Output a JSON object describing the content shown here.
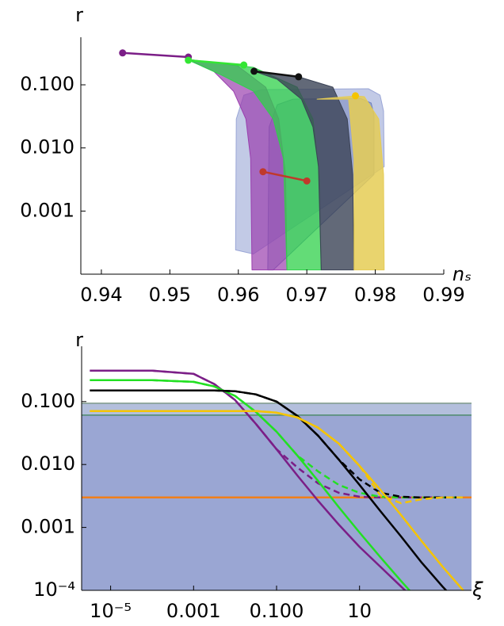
{
  "chart_data": [
    {
      "type": "line",
      "ylabel": "r",
      "xlabel": "nₛ",
      "log_y": true,
      "markers": true,
      "xlim": [
        0.937,
        0.99
      ],
      "xticks": [
        0.94,
        0.95,
        0.96,
        0.97,
        0.98,
        0.99
      ],
      "ylim": [
        0.0001,
        0.45
      ],
      "yticks": [
        0.001,
        {
          "value": 0.01,
          "label": "0.010"
        },
        {
          "value": 0.1,
          "label": "0.100"
        }
      ],
      "bands": [
        {
          "color": "#9aa6d6",
          "opacity": 0.6,
          "x": [
            0.9596,
            0.9597,
            0.9608,
            0.9634,
            0.979,
            0.9807,
            0.9812,
            0.9813,
            0.9622
          ],
          "y": [
            0.000242,
            0.0288,
            0.0686,
            0.084,
            0.0865,
            0.0686,
            0.0385,
            0.00506,
            0.000209
          ]
        },
        {
          "color": "#6f7fb8",
          "opacity": 0.5,
          "x": [
            0.9643,
            0.9645,
            0.9657,
            0.968,
            0.9778,
            0.9794,
            0.9798,
            0.9798,
            0.9651
          ],
          "y": [
            0.000117,
            0.0215,
            0.0485,
            0.0594,
            0.0611,
            0.0514,
            0.0333,
            0.00379,
            0.000117
          ]
        },
        {
          "color": "#9a3fae",
          "opacity": 0.7,
          "x": [
            0.9527,
            0.9564,
            0.9593,
            0.9611,
            0.9618,
            0.962,
            0.9671,
            0.9669,
            0.9659,
            0.964,
            0.9599
          ],
          "y": [
            0.253,
            0.164,
            0.0793,
            0.0288,
            0.00676,
            0.000117,
            0.000117,
            0.00379,
            0.0288,
            0.0917,
            0.2
          ]
        },
        {
          "color": "#2fd04a",
          "opacity": 0.75,
          "x": [
            0.953,
            0.9576,
            0.9622,
            0.9651,
            0.9666,
            0.9671,
            0.9721,
            0.9718,
            0.9709,
            0.9686,
            0.9622,
            0.9553
          ],
          "y": [
            0.238,
            0.142,
            0.0793,
            0.0288,
            0.00676,
            0.000117,
            0.000117,
            0.00379,
            0.0288,
            0.0917,
            0.189,
            0.232
          ]
        },
        {
          "color": "#3b4356",
          "opacity": 0.8,
          "x": [
            0.9623,
            0.9657,
            0.9692,
            0.9709,
            0.9717,
            0.9721,
            0.9769,
            0.9767,
            0.9759,
            0.9738,
            0.9688
          ],
          "y": [
            0.164,
            0.122,
            0.0594,
            0.0215,
            0.00506,
            0.000117,
            0.000117,
            0.00379,
            0.0288,
            0.0917,
            0.134
          ]
        },
        {
          "color": "#e5cc55",
          "opacity": 0.85,
          "x": [
            0.9715,
            0.9761,
            0.9769,
            0.9769,
            0.9813,
            0.9812,
            0.9805,
            0.9784,
            0.9772
          ],
          "y": [
            0.0594,
            0.0594,
            0.00676,
            0.000117,
            0.000117,
            0.00379,
            0.0288,
            0.0648,
            0.0667
          ]
        }
      ],
      "series": [
        {
          "color": "#7b1e87",
          "x": [
            0.9431,
            0.9527
          ],
          "values": [
            0.32,
            0.275
          ]
        },
        {
          "color": "#33e633",
          "x": [
            0.9527,
            0.9608
          ],
          "values": [
            0.245,
            0.206
          ]
        },
        {
          "color": "#111111",
          "x": [
            0.9623,
            0.9688
          ],
          "values": [
            0.164,
            0.134
          ]
        },
        {
          "color": "#c0392b",
          "x": [
            0.9636,
            0.97
          ],
          "values": [
            0.0042,
            0.003
          ]
        },
        {
          "color": "#f5c400",
          "x": [
            0.9771
          ],
          "values": [
            0.067
          ]
        }
      ]
    },
    {
      "type": "line",
      "ylabel": "r",
      "xlabel": "ξ",
      "log_x": true,
      "log_y": true,
      "xlim": [
        2e-06,
        5000
      ],
      "xticks": [
        {
          "value": 1e-05,
          "label": "10⁻⁵"
        },
        0.001,
        {
          "value": 0.1,
          "label": "0.100"
        },
        10
      ],
      "ylim": [
        0.0001,
        0.6
      ],
      "yticks": [
        {
          "value": 0.0001,
          "label": "10⁻⁴"
        },
        0.001,
        {
          "value": 0.01,
          "label": "0.010"
        },
        {
          "value": 0.1,
          "label": "0.100"
        }
      ],
      "regions": [
        {
          "upper": 0.094,
          "color": "#b3bfdc",
          "edge": "#7f9a8a"
        },
        {
          "upper": 0.061,
          "color": "#9aa6d3",
          "edge": "#4e8b6c"
        }
      ],
      "hlines": [
        {
          "value": 0.003,
          "color": "#f07f1a"
        }
      ],
      "x": [
        3.16e-06,
        1e-05,
        0.0001,
        0.001,
        0.00316,
        0.01,
        0.0316,
        0.1,
        0.316,
        1,
        3.16,
        10,
        31.6,
        100,
        316,
        1000,
        3160
      ],
      "series": [
        {
          "color": "#7b1e87",
          "values": [
            0.31,
            0.31,
            0.31,
            0.276,
            0.189,
            0.106,
            0.0444,
            0.0175,
            0.00671,
            0.00265,
            0.00111,
            0.000492,
            0.000238,
            0.000115,
            5.58e-05,
            null,
            null
          ]
        },
        {
          "color": "#7b1e87",
          "dash": true,
          "values": [
            0.31,
            0.31,
            0.31,
            0.276,
            0.189,
            0.106,
            0.0444,
            0.0175,
            0.00897,
            0.00502,
            0.00355,
            0.00307,
            0.00299,
            0.00299,
            0.00299,
            0.00299,
            0.00299
          ]
        },
        {
          "color": "#22e022",
          "values": [
            0.219,
            0.219,
            0.219,
            0.206,
            0.174,
            0.123,
            0.0686,
            0.0332,
            0.0139,
            0.00548,
            0.0021,
            0.00083,
            0.000337,
            0.000141,
            6.08e-05,
            null,
            null
          ]
        },
        {
          "color": "#22e022",
          "dash": true,
          "values": [
            0.219,
            0.219,
            0.219,
            0.206,
            0.174,
            0.123,
            0.0686,
            0.0332,
            0.0139,
            0.00776,
            0.00474,
            0.00355,
            0.00307,
            0.00299,
            0.00299,
            0.00299,
            0.00299
          ]
        },
        {
          "color": "#000000",
          "values": [
            0.15,
            0.15,
            0.15,
            0.15,
            0.15,
            0.146,
            0.13,
            0.1,
            0.0593,
            0.0287,
            0.012,
            0.00474,
            0.00182,
            0.000718,
            0.000275,
            0.000115,
            5.12e-05
          ]
        },
        {
          "color": "#000000",
          "dash": true,
          "values": [
            0.15,
            0.15,
            0.15,
            0.15,
            0.15,
            0.146,
            0.13,
            0.1,
            0.0593,
            0.0287,
            0.012,
            0.00581,
            0.00355,
            0.00307,
            0.00299,
            0.00299,
            0.00299
          ]
        },
        {
          "color": "#f5c400",
          "values": [
            0.0706,
            0.0706,
            0.0706,
            0.0706,
            0.0706,
            0.0706,
            0.0706,
            0.0666,
            0.056,
            0.0384,
            0.0215,
            0.00953,
            0.00398,
            0.00157,
            0.000604,
            0.000238,
            9.98e-05
          ]
        },
        {
          "color": "#f5c400",
          "dash": true,
          "values": [
            0.0706,
            0.0706,
            0.0706,
            0.0706,
            0.0706,
            0.0706,
            0.0706,
            0.0666,
            0.056,
            0.0384,
            0.0215,
            0.00953,
            0.00325,
            0.00243,
            0.00281,
            0.00299,
            0.00299
          ]
        }
      ]
    }
  ]
}
